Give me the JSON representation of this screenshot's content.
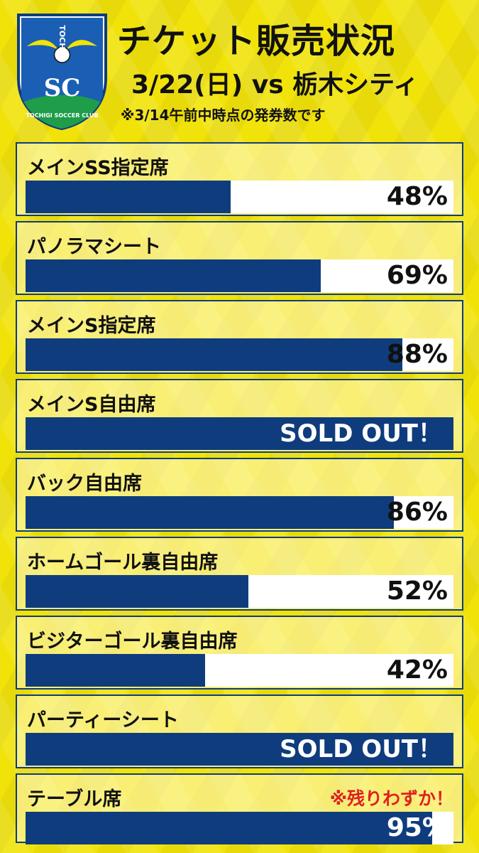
{
  "header": {
    "title": "チケット販売状況",
    "match": "3/22(日) vs 栃木シティ",
    "note": "※3/14午前中時点の発券数です",
    "logo_text": "TOCHIGI SOCCER CLUB",
    "logo_initials": "SC",
    "logo_vertical": "TOCHIGI"
  },
  "colors": {
    "background": "#f1e30a",
    "bar": "#0f3c7d",
    "track": "#ffffff",
    "badge": "#e02020"
  },
  "seats": [
    {
      "name": "メインSS指定席",
      "percent": 48,
      "display": "48%"
    },
    {
      "name": "パノラマシート",
      "percent": 69,
      "display": "69%"
    },
    {
      "name": "メインS指定席",
      "percent": 88,
      "display": "88%"
    },
    {
      "name": "メインS自由席",
      "percent": 100,
      "display": "SOLD OUT！",
      "sold_out": true
    },
    {
      "name": "バック自由席",
      "percent": 86,
      "display": "86%"
    },
    {
      "name": "ホームゴール裏自由席",
      "percent": 52,
      "display": "52%"
    },
    {
      "name": "ビジターゴール裏自由席",
      "percent": 42,
      "display": "42%"
    },
    {
      "name": "パーティーシート",
      "percent": 100,
      "display": "SOLD OUT！",
      "sold_out": true
    },
    {
      "name": "テーブル席",
      "percent": 95,
      "display": "95%",
      "badge": "※残りわずか！"
    }
  ]
}
